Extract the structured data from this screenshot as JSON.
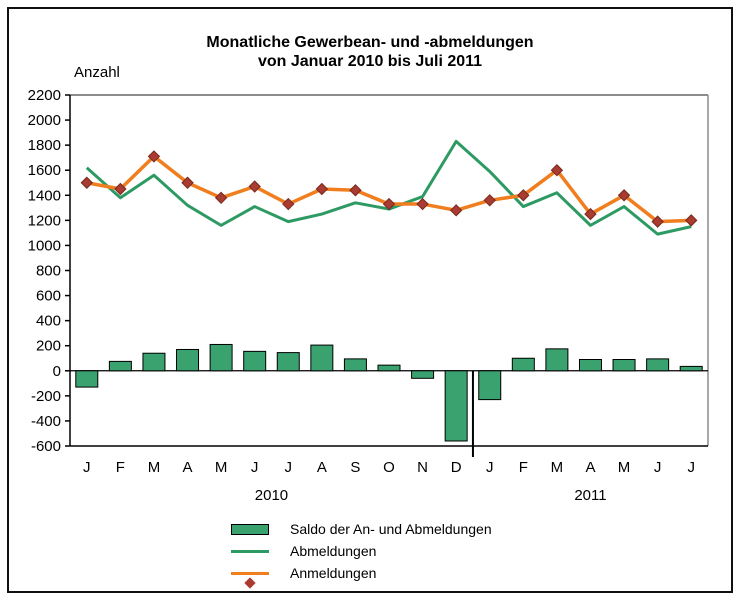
{
  "title": {
    "line1": "Monatliche Gewerbean- und -abmeldungen",
    "line2": "von Januar 2010 bis Juli 2011"
  },
  "y_axis": {
    "label": "Anzahl",
    "max": 2200,
    "min": -600,
    "step": 200
  },
  "colors": {
    "bar_fill": "#3AA26F",
    "bar_border": "#000000",
    "line_abmeldungen": "#2E9A63",
    "line_anmeldungen": "#F07E1E",
    "marker_fill": "#A93B30",
    "marker_stroke": "#78281E",
    "axis": "#000000",
    "plot_border_gray": "#8C8C8C"
  },
  "chart_data": {
    "type": "combo",
    "title": "Monatliche Gewerbean- und -abmeldungen von Januar 2010 bis Juli 2011",
    "ylabel": "Anzahl",
    "ylim": [
      -600,
      2200
    ],
    "ytick_step": 200,
    "grid": false,
    "legend_position": "bottom",
    "categories": [
      "J",
      "F",
      "M",
      "A",
      "M",
      "J",
      "J",
      "A",
      "S",
      "O",
      "N",
      "D",
      "J",
      "F",
      "M",
      "A",
      "M",
      "J",
      "J"
    ],
    "category_groups": [
      {
        "label": "2010",
        "from": 0,
        "to": 11
      },
      {
        "label": "2011",
        "from": 12,
        "to": 18
      }
    ],
    "year_divider_after_index": 11,
    "series": [
      {
        "name": "Saldo der An- und Abmeldungen",
        "type": "bar",
        "color": "#3AA26F",
        "values": [
          -130,
          75,
          140,
          170,
          210,
          155,
          145,
          205,
          95,
          45,
          -60,
          -560,
          -230,
          100,
          175,
          90,
          90,
          95,
          35
        ]
      },
      {
        "name": "Abmeldungen",
        "type": "line",
        "color": "#2E9A63",
        "values": [
          1620,
          1380,
          1560,
          1320,
          1160,
          1310,
          1190,
          1250,
          1340,
          1290,
          1390,
          1830,
          1590,
          1310,
          1420,
          1160,
          1310,
          1090,
          1150
        ]
      },
      {
        "name": "Anmeldungen",
        "type": "line",
        "marker": "diamond",
        "color": "#F07E1E",
        "marker_color": "#A93B30",
        "values": [
          1500,
          1450,
          1710,
          1500,
          1380,
          1470,
          1330,
          1450,
          1440,
          1330,
          1330,
          1280,
          1360,
          1400,
          1600,
          1250,
          1400,
          1190,
          1200
        ]
      }
    ]
  }
}
